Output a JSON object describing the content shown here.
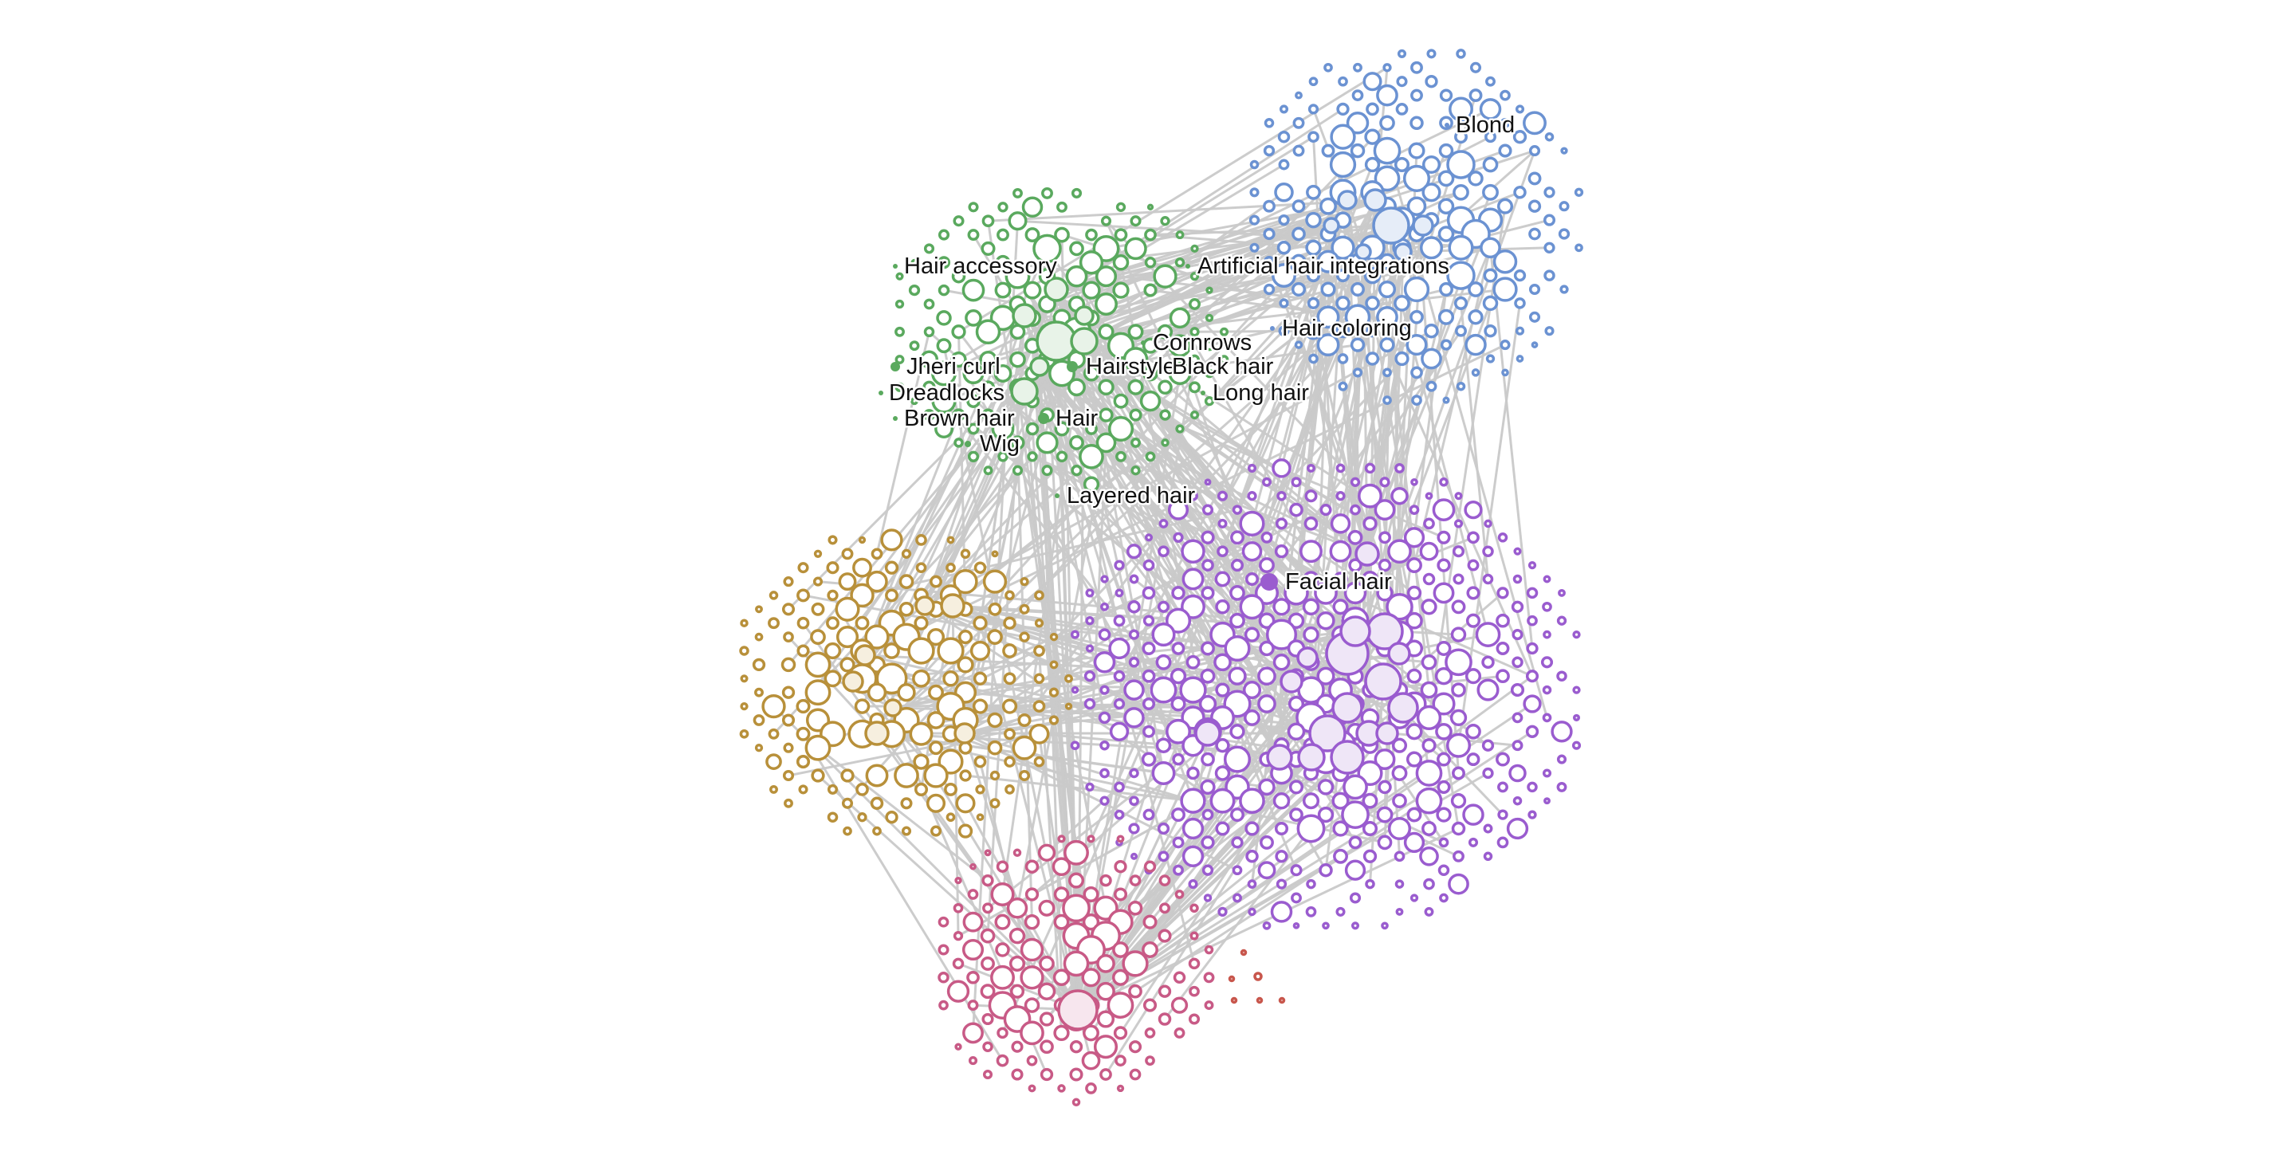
{
  "graph": {
    "colors": {
      "hair": "#5aa95e",
      "color": "#6b92d2",
      "face": "#9a5ccf",
      "misc": "#b8903a",
      "body": "#c85a86",
      "stray": "#c8564c",
      "edge": "#c9c9c9",
      "label": "#111111"
    },
    "labels": [
      {
        "id": "blond",
        "text": "Blond"
      },
      {
        "id": "hair-accessory",
        "text": "Hair accessory"
      },
      {
        "id": "artificial-hair-integrations",
        "text": "Artificial hair integrations"
      },
      {
        "id": "hair-coloring",
        "text": "Hair coloring"
      },
      {
        "id": "cornrows",
        "text": "Cornrows"
      },
      {
        "id": "jheri-curl",
        "text": "Jheri curl"
      },
      {
        "id": "hairstyle",
        "text": "Hairstyle"
      },
      {
        "id": "black-hair",
        "text": "Black hair"
      },
      {
        "id": "dreadlocks",
        "text": "Dreadlocks"
      },
      {
        "id": "long-hair",
        "text": "Long hair"
      },
      {
        "id": "brown-hair",
        "text": "Brown hair"
      },
      {
        "id": "hair",
        "text": "Hair"
      },
      {
        "id": "wig",
        "text": "Wig"
      },
      {
        "id": "layered-hair",
        "text": "Layered hair"
      },
      {
        "id": "facial-hair",
        "text": "Facial hair"
      }
    ]
  }
}
